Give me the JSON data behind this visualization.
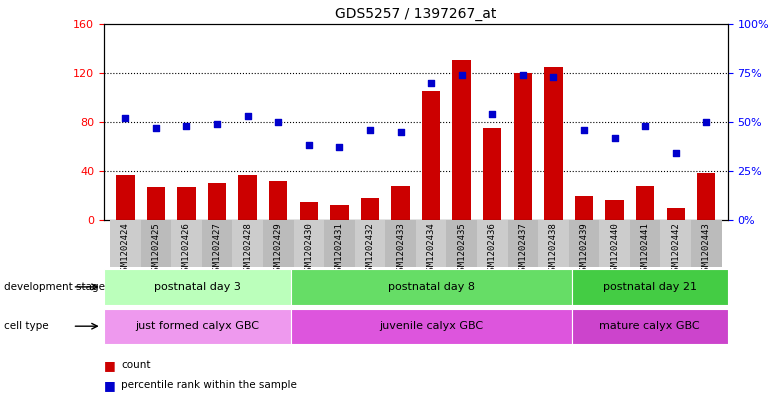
{
  "title": "GDS5257 / 1397267_at",
  "samples": [
    "GSM1202424",
    "GSM1202425",
    "GSM1202426",
    "GSM1202427",
    "GSM1202428",
    "GSM1202429",
    "GSM1202430",
    "GSM1202431",
    "GSM1202432",
    "GSM1202433",
    "GSM1202434",
    "GSM1202435",
    "GSM1202436",
    "GSM1202437",
    "GSM1202438",
    "GSM1202439",
    "GSM1202440",
    "GSM1202441",
    "GSM1202442",
    "GSM1202443"
  ],
  "counts": [
    37,
    27,
    27,
    30,
    37,
    32,
    15,
    12,
    18,
    28,
    105,
    130,
    75,
    120,
    125,
    20,
    16,
    28,
    10,
    38
  ],
  "percentiles": [
    52,
    47,
    48,
    49,
    53,
    50,
    38,
    37,
    46,
    45,
    70,
    74,
    54,
    74,
    73,
    46,
    42,
    48,
    34,
    50
  ],
  "left_ylim": [
    0,
    160
  ],
  "right_ylim": [
    0,
    100
  ],
  "left_yticks": [
    0,
    40,
    80,
    120,
    160
  ],
  "right_yticks": [
    0,
    25,
    50,
    75,
    100
  ],
  "bar_color": "#cc0000",
  "dot_color": "#0000cc",
  "bg_color": "#ffffff",
  "dev_groups": [
    {
      "label": "postnatal day 3",
      "start": 0,
      "end": 6,
      "color": "#bbffbb"
    },
    {
      "label": "postnatal day 8",
      "start": 6,
      "end": 15,
      "color": "#66dd66"
    },
    {
      "label": "postnatal day 21",
      "start": 15,
      "end": 20,
      "color": "#44cc44"
    }
  ],
  "cell_groups": [
    {
      "label": "just formed calyx GBC",
      "start": 0,
      "end": 6,
      "color": "#ee99ee"
    },
    {
      "label": "juvenile calyx GBC",
      "start": 6,
      "end": 15,
      "color": "#dd55dd"
    },
    {
      "label": "mature calyx GBC",
      "start": 15,
      "end": 20,
      "color": "#cc44cc"
    }
  ],
  "legend_count_label": "count",
  "legend_pct_label": "percentile rank within the sample",
  "dev_stage_label": "development stage",
  "cell_type_label": "cell type",
  "xtick_bg_even": "#cccccc",
  "xtick_bg_odd": "#bbbbbb"
}
